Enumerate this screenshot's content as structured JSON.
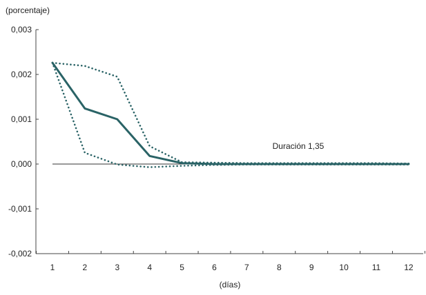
{
  "chart_data": {
    "type": "line",
    "ylabel": "(porcentaje)",
    "xlabel": "(días)",
    "annotation": "Duración 1,35",
    "x": [
      1,
      2,
      3,
      4,
      5,
      6,
      7,
      8,
      9,
      10,
      11,
      12
    ],
    "xticks": [
      "1",
      "2",
      "3",
      "4",
      "5",
      "6",
      "7",
      "8",
      "9",
      "10",
      "11",
      "12"
    ],
    "ylim": [
      -0.002,
      0.003
    ],
    "yticks": [
      {
        "value": 0.003,
        "label": "0,003"
      },
      {
        "value": 0.002,
        "label": "0,002"
      },
      {
        "value": 0.001,
        "label": "0,001"
      },
      {
        "value": 0.0,
        "label": "0,000"
      },
      {
        "value": -0.001,
        "label": "-0,001"
      },
      {
        "value": -0.002,
        "label": "-0,002"
      }
    ],
    "series": [
      {
        "style": "solid",
        "color": "#2a6366",
        "values": [
          0.00226,
          0.00124,
          0.001,
          0.00018,
          2e-05,
          0.0,
          0.0,
          0.0,
          0.0,
          0.0,
          0.0,
          0.0
        ]
      },
      {
        "style": "dotted",
        "color": "#2a6366",
        "values": [
          0.00226,
          0.00219,
          0.00195,
          0.0004,
          4e-05,
          3e-05,
          2e-05,
          2e-05,
          2e-05,
          2e-05,
          2e-05,
          1e-05
        ]
      },
      {
        "style": "dotted",
        "color": "#2a6366",
        "values": [
          0.00226,
          0.00025,
          -1e-05,
          -7e-05,
          -4e-05,
          -2e-05,
          -1e-05,
          -1e-05,
          -1e-05,
          -1e-05,
          -1e-05,
          -1e-05
        ]
      }
    ],
    "grid": false
  }
}
